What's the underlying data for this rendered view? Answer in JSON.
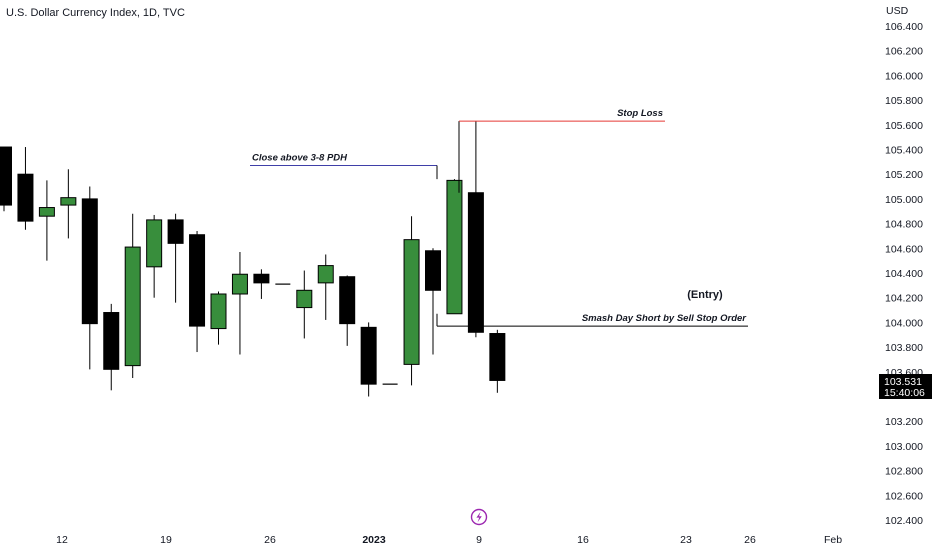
{
  "header": {
    "title": "U.S. Dollar Currency Index, 1D, TVC"
  },
  "chart_data": {
    "type": "candlestick",
    "currency": "USD",
    "ylim": [
      102.3,
      106.6
    ],
    "y_ticks": [
      "106.400",
      "106.200",
      "106.000",
      "105.800",
      "105.600",
      "105.400",
      "105.200",
      "105.000",
      "104.800",
      "104.600",
      "104.400",
      "104.200",
      "104.000",
      "103.800",
      "103.600",
      "103.200",
      "103.000",
      "102.800",
      "102.600",
      "102.400"
    ],
    "x_ticks": [
      "12",
      "19",
      "26",
      "2023",
      "9",
      "16",
      "23",
      "26",
      "Feb"
    ],
    "price_label": {
      "value": "103.531",
      "time": "15:40:06"
    },
    "colors": {
      "up": "#388e3c",
      "down": "#000000",
      "stop": "#e53935",
      "level": "#3f3fa8",
      "entry": "#000000"
    },
    "candles": [
      {
        "o": 105.42,
        "h": 105.42,
        "l": 104.9,
        "c": 104.95
      },
      {
        "o": 105.2,
        "h": 105.42,
        "l": 104.75,
        "c": 104.82
      },
      {
        "o": 104.86,
        "h": 105.15,
        "l": 104.5,
        "c": 104.93
      },
      {
        "o": 104.95,
        "h": 105.24,
        "l": 104.68,
        "c": 105.01
      },
      {
        "o": 105.0,
        "h": 105.1,
        "l": 103.62,
        "c": 103.99
      },
      {
        "o": 104.08,
        "h": 104.15,
        "l": 103.45,
        "c": 103.62
      },
      {
        "o": 103.65,
        "h": 104.88,
        "l": 103.55,
        "c": 104.61
      },
      {
        "o": 104.45,
        "h": 104.87,
        "l": 104.2,
        "c": 104.83
      },
      {
        "o": 104.83,
        "h": 104.88,
        "l": 104.16,
        "c": 104.64
      },
      {
        "o": 104.71,
        "h": 104.74,
        "l": 103.76,
        "c": 103.97
      },
      {
        "o": 103.95,
        "h": 104.25,
        "l": 103.82,
        "c": 104.23
      },
      {
        "o": 104.23,
        "h": 104.57,
        "l": 103.74,
        "c": 104.39
      },
      {
        "o": 104.39,
        "h": 104.43,
        "l": 104.19,
        "c": 104.32
      },
      {
        "o": 104.31,
        "h": 104.31,
        "l": 104.31,
        "c": 104.31
      },
      {
        "o": 104.12,
        "h": 104.42,
        "l": 103.87,
        "c": 104.26
      },
      {
        "o": 104.32,
        "h": 104.55,
        "l": 104.02,
        "c": 104.46
      },
      {
        "o": 104.37,
        "h": 104.38,
        "l": 103.81,
        "c": 103.99
      },
      {
        "o": 103.96,
        "h": 104.0,
        "l": 103.4,
        "c": 103.5
      },
      {
        "o": 103.5,
        "h": 103.5,
        "l": 103.5,
        "c": 103.5
      },
      {
        "o": 103.66,
        "h": 104.86,
        "l": 103.49,
        "c": 104.67
      },
      {
        "o": 104.58,
        "h": 104.6,
        "l": 103.74,
        "c": 104.26
      },
      {
        "o": 104.07,
        "h": 105.16,
        "l": 104.07,
        "c": 105.15
      },
      {
        "o": 105.05,
        "h": 105.63,
        "l": 103.88,
        "c": 103.92
      },
      {
        "o": 103.91,
        "h": 103.94,
        "l": 103.43,
        "c": 103.53
      }
    ],
    "annotations": {
      "stop_loss": {
        "label": "Stop Loss",
        "price": 105.63
      },
      "level": {
        "label": "Close above 3-8 PDH",
        "price": 105.27
      },
      "entry": {
        "label": "(Entry)"
      },
      "entry_line": {
        "label": "Smash Day Short by Sell Stop Order",
        "price": 103.97
      }
    }
  },
  "footer": {
    "flash_icon": "lightning-icon"
  }
}
